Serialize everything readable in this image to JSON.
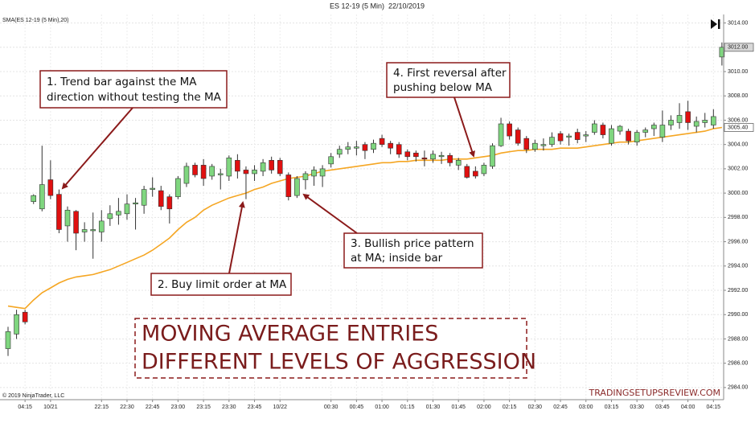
{
  "chart_data": {
    "type": "candlestick",
    "title": "ES 12-19 (5 Min)  22/10/2019",
    "copyright": "© 2019 NinjaTrader, LLC",
    "watermark": "TRADINGSETUPSREVIEW.COM",
    "banner": [
      "MOVING AVERAGE ENTRIES",
      "DIFFERENT LEVELS OF AGGRESSION"
    ],
    "up_color": "#7fd67f",
    "down_color": "#e01010",
    "categories": [
      null,
      null,
      "04:15",
      null,
      null,
      "10/21",
      null,
      null,
      null,
      null,
      null,
      "22:15",
      null,
      null,
      "22:30",
      null,
      null,
      "22:45",
      null,
      null,
      "23:00",
      null,
      null,
      "23:15",
      null,
      null,
      "23:30",
      null,
      null,
      "23:45",
      null,
      null,
      "10/22",
      null,
      null,
      null,
      null,
      null,
      "00:30",
      null,
      null,
      "00:45",
      null,
      null,
      "01:00",
      null,
      null,
      "01:15",
      null,
      null,
      "01:30",
      null,
      null,
      "01:45",
      null,
      null,
      "02:00",
      null,
      null,
      "02:15",
      null,
      null,
      "02:30",
      null,
      null,
      "02:45",
      null,
      null,
      "03:00",
      null,
      null,
      "03:15",
      null,
      null,
      "03:30",
      null,
      null,
      "03:45",
      null,
      null,
      "04:00",
      null,
      null,
      "04:15",
      null
    ],
    "open": [
      2987.2,
      2988.4,
      2990.2,
      2999.3,
      2998.7,
      3001.1,
      2999.9,
      2997.3,
      2998.5,
      2996.8,
      2996.9,
      2996.8,
      2997.9,
      2998.2,
      2998.3,
      2999.1,
      2999.0,
      3000.3,
      3000.2,
      2999.7,
      2999.7,
      3000.8,
      3002.3,
      3002.3,
      3001.4,
      3001.5,
      3001.4,
      3002.7,
      3001.9,
      3001.6,
      3001.8,
      3002.7,
      3002.7,
      3001.5,
      2999.8,
      3001.1,
      3001.4,
      3001.4,
      3002.4,
      3003.2,
      3003.6,
      3003.7,
      3004.0,
      3003.6,
      3004.5,
      3004.1,
      3004.0,
      3003.4,
      3003.3,
      3002.9,
      3002.8,
      3003.0,
      3003.1,
      3002.3,
      3002.2,
      3001.8,
      3001.6,
      3002.2,
      3003.9,
      3005.7,
      3005.2,
      3004.5,
      3003.6,
      3003.9,
      3004.0,
      3004.9,
      3004.6,
      3005.0,
      3004.7,
      3005.0,
      3005.6,
      3004.1,
      3005.1,
      3005.1,
      3004.2,
      3005.0,
      3005.3,
      3004.6,
      3005.6,
      3005.8,
      3006.7,
      3005.5,
      3005.8,
      3005.6,
      3011.2
    ],
    "high": [
      2989.0,
      2990.4,
      2990.4,
      2999.9,
      3003.9,
      3002.7,
      3000.3,
      2998.9,
      2998.6,
      2997.6,
      2998.4,
      2998.6,
      2999.0,
      2999.6,
      2999.9,
      2999.6,
      3000.6,
      3001.3,
      3000.6,
      2999.9,
      3001.4,
      3002.5,
      3002.5,
      3002.8,
      3002.4,
      3002.0,
      3003.1,
      3003.2,
      3002.2,
      3002.3,
      3002.8,
      3003.0,
      3002.9,
      3001.7,
      3001.4,
      3001.8,
      3002.2,
      3002.3,
      3003.3,
      3003.9,
      3004.2,
      3004.3,
      3004.2,
      3004.4,
      3004.8,
      3004.3,
      3004.2,
      3003.6,
      3003.5,
      3003.5,
      3003.5,
      3003.4,
      3003.3,
      3002.9,
      3002.4,
      3002.2,
      3002.5,
      3004.1,
      3006.2,
      3005.9,
      3005.4,
      3004.7,
      3004.4,
      3004.5,
      3005.0,
      3005.1,
      3004.9,
      3005.3,
      3005.1,
      3006.0,
      3005.8,
      3005.6,
      3005.6,
      3005.3,
      3005.2,
      3005.4,
      3005.8,
      3006.8,
      3006.4,
      3007.4,
      3007.6,
      3006.3,
      3006.6,
      3006.9,
      3012.4
    ],
    "low": [
      2986.6,
      2988.0,
      2989.2,
      2999.1,
      2998.5,
      2999.5,
      2996.7,
      2996.0,
      2995.3,
      2996.0,
      2994.6,
      2996.0,
      2997.3,
      2997.4,
      2997.8,
      2997.0,
      2998.3,
      2999.7,
      2998.6,
      2997.5,
      2999.5,
      3000.5,
      3001.3,
      3000.6,
      3001.1,
      3000.3,
      3001.0,
      3001.2,
      2999.5,
      3001.0,
      3001.4,
      3001.6,
      3001.4,
      2999.4,
      2999.6,
      3000.3,
      3000.6,
      3000.5,
      3002.1,
      3002.9,
      3003.2,
      3003.1,
      3002.8,
      3003.3,
      3003.8,
      3003.2,
      3002.9,
      3002.7,
      3002.6,
      3002.2,
      3002.5,
      3002.4,
      3002.2,
      3001.9,
      3001.2,
      3001.2,
      3001.4,
      3002.0,
      3003.8,
      3004.4,
      3003.9,
      3003.3,
      3003.4,
      3003.5,
      3003.8,
      3004.0,
      3003.9,
      3004.1,
      3004.2,
      3004.8,
      3004.5,
      3003.9,
      3004.8,
      3004.0,
      3003.9,
      3004.6,
      3004.7,
      3004.2,
      3005.2,
      3005.3,
      3005.2,
      3005.0,
      3005.4,
      3005.3,
      3010.5
    ],
    "close": [
      2988.6,
      2990.0,
      2989.4,
      2999.8,
      3000.7,
      2999.8,
      2997.0,
      2998.6,
      2996.7,
      2997.0,
      2997.0,
      2997.7,
      2998.3,
      2998.5,
      2999.1,
      2999.2,
      3000.3,
      3000.4,
      2998.9,
      2998.7,
      3001.2,
      3002.2,
      3001.5,
      3001.2,
      3002.2,
      3001.6,
      3002.9,
      3001.8,
      3001.6,
      3001.9,
      3002.5,
      3001.9,
      3001.6,
      2999.7,
      3001.2,
      3001.6,
      3001.9,
      3002.0,
      3003.0,
      3003.6,
      3003.8,
      3003.8,
      3003.5,
      3004.1,
      3004.0,
      3003.7,
      3003.2,
      3003.0,
      3003.0,
      3002.8,
      3003.2,
      3003.1,
      3002.5,
      3002.7,
      3001.3,
      3001.4,
      3002.3,
      3003.9,
      3005.7,
      3004.7,
      3004.1,
      3003.6,
      3004.1,
      3004.0,
      3004.6,
      3004.3,
      3004.7,
      3004.4,
      3004.8,
      3005.7,
      3004.8,
      3005.3,
      3005.5,
      3004.3,
      3005.0,
      3005.2,
      3005.6,
      3005.6,
      3006.0,
      3006.4,
      3005.8,
      3005.9,
      3006.0,
      3006.3,
      3012.0
    ],
    "sma": {
      "name": "SMA(ES 12-19 (5 Min),20)",
      "color": "#f5a623",
      "values": [
        2990.7,
        2990.6,
        2990.5,
        2991.2,
        2991.8,
        2992.2,
        2992.6,
        2992.9,
        2993.1,
        2993.2,
        2993.3,
        2993.5,
        2993.7,
        2994.0,
        2994.3,
        2994.6,
        2994.9,
        2995.3,
        2995.8,
        2996.3,
        2997.0,
        2997.6,
        2998.0,
        2998.6,
        2999.0,
        2999.3,
        2999.6,
        2999.8,
        3000.0,
        3000.3,
        3000.5,
        3000.8,
        3001.0,
        3001.2,
        3001.3,
        3001.4,
        3001.6,
        3001.8,
        3001.9,
        3002.0,
        3002.1,
        3002.2,
        3002.3,
        3002.4,
        3002.5,
        3002.5,
        3002.6,
        3002.6,
        3002.7,
        3002.7,
        3002.7,
        3002.7,
        3002.8,
        3002.8,
        3002.8,
        3002.9,
        3003.0,
        3003.1,
        3003.3,
        3003.4,
        3003.5,
        3003.5,
        3003.6,
        3003.6,
        3003.6,
        3003.7,
        3003.7,
        3003.7,
        3003.8,
        3003.9,
        3004.0,
        3004.1,
        3004.2,
        3004.2,
        3004.3,
        3004.4,
        3004.5,
        3004.6,
        3004.7,
        3004.8,
        3004.9,
        3005.0,
        3005.1,
        3005.3,
        3005.4
      ]
    },
    "price_markers": [
      {
        "value": 3012,
        "label": "3012.00"
      },
      {
        "value": 3005.4,
        "label": "3005.40"
      }
    ],
    "ylim": [
      2983,
      3014.7
    ],
    "yticks": [
      {
        "value": 2984,
        "label": "2984.00"
      },
      {
        "value": 2986,
        "label": "2986.00"
      },
      {
        "value": 2988,
        "label": "2988.00"
      },
      {
        "value": 2990,
        "label": "2990.00"
      },
      {
        "value": 2992,
        "label": "2992.00"
      },
      {
        "value": 2994,
        "label": "2994.00"
      },
      {
        "value": 2996,
        "label": "2996.00"
      },
      {
        "value": 2998,
        "label": "2998.00"
      },
      {
        "value": 3000,
        "label": "3000.00"
      },
      {
        "value": 3002,
        "label": "3002.00"
      },
      {
        "value": 3004,
        "label": "3004.00"
      },
      {
        "value": 3006,
        "label": "3006.00"
      },
      {
        "value": 3008,
        "label": "3008.00"
      },
      {
        "value": 3010,
        "label": "3010.00"
      },
      {
        "value": 3012,
        "label": "3012.00"
      },
      {
        "value": 3014,
        "label": "3014.00"
      }
    ],
    "grid": true,
    "annotations": [
      {
        "lines": [
          "1. Trend bar against the MA",
          "direction without testing the MA"
        ]
      },
      {
        "lines": [
          "2. Buy limit order at MA"
        ]
      },
      {
        "lines": [
          "3. Bullish price pattern",
          "at MA; inside bar"
        ]
      },
      {
        "lines": [
          "4. First reversal after",
          "pushing below MA"
        ]
      }
    ]
  }
}
